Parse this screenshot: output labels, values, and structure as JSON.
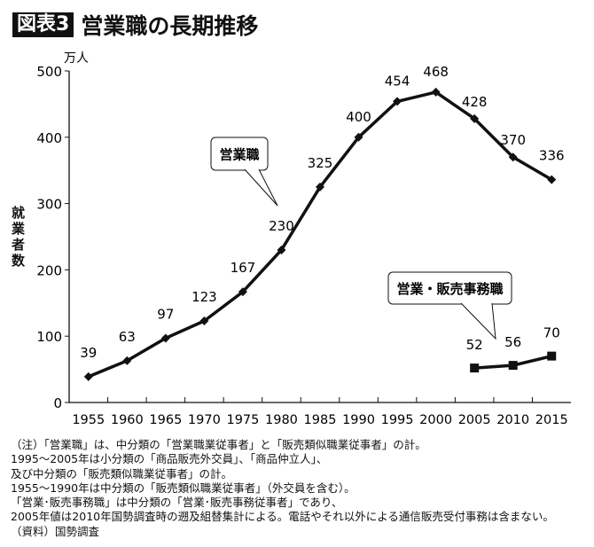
{
  "title": {
    "badge": "図表3",
    "text": "営業職の長期推移"
  },
  "chart_data": {
    "type": "line",
    "categories": [
      "1955",
      "1960",
      "1965",
      "1970",
      "1975",
      "1980",
      "1985",
      "1990",
      "1995",
      "2000",
      "2005",
      "2010",
      "2015"
    ],
    "unit": "万人",
    "ylabel": "就業者数",
    "ylim": [
      0,
      500
    ],
    "yticks": [
      0,
      100,
      200,
      300,
      400,
      500
    ],
    "grid": false,
    "series": [
      {
        "name": "営業職",
        "marker": "diamond",
        "values": [
          39,
          63,
          97,
          123,
          167,
          230,
          325,
          400,
          454,
          468,
          428,
          370,
          336
        ]
      },
      {
        "name": "営業・販売事務職",
        "marker": "square",
        "values": [
          null,
          null,
          null,
          null,
          null,
          null,
          null,
          null,
          null,
          null,
          52,
          56,
          70
        ]
      }
    ]
  },
  "notes": [
    "（注）「営業職」は、中分類の「営業職業従事者」と「販売類似職業従事者」の計。",
    "1995～2005年は小分類の「商品販売外交員」、「商品仲立人」、",
    "及び中分類の「販売類似職業従事者」の計。",
    "1955～1990年は中分類の「販売類似職業従事者」（外交員を含む）。",
    "「営業･販売事務職」は中分類の「営業･販売事務従事者」であり、",
    "2005年値は2010年国勢調査時の遡及組替集計による。電話やそれ以外による通信販売受付事務は含まない。",
    "（資料）国勢調査"
  ]
}
